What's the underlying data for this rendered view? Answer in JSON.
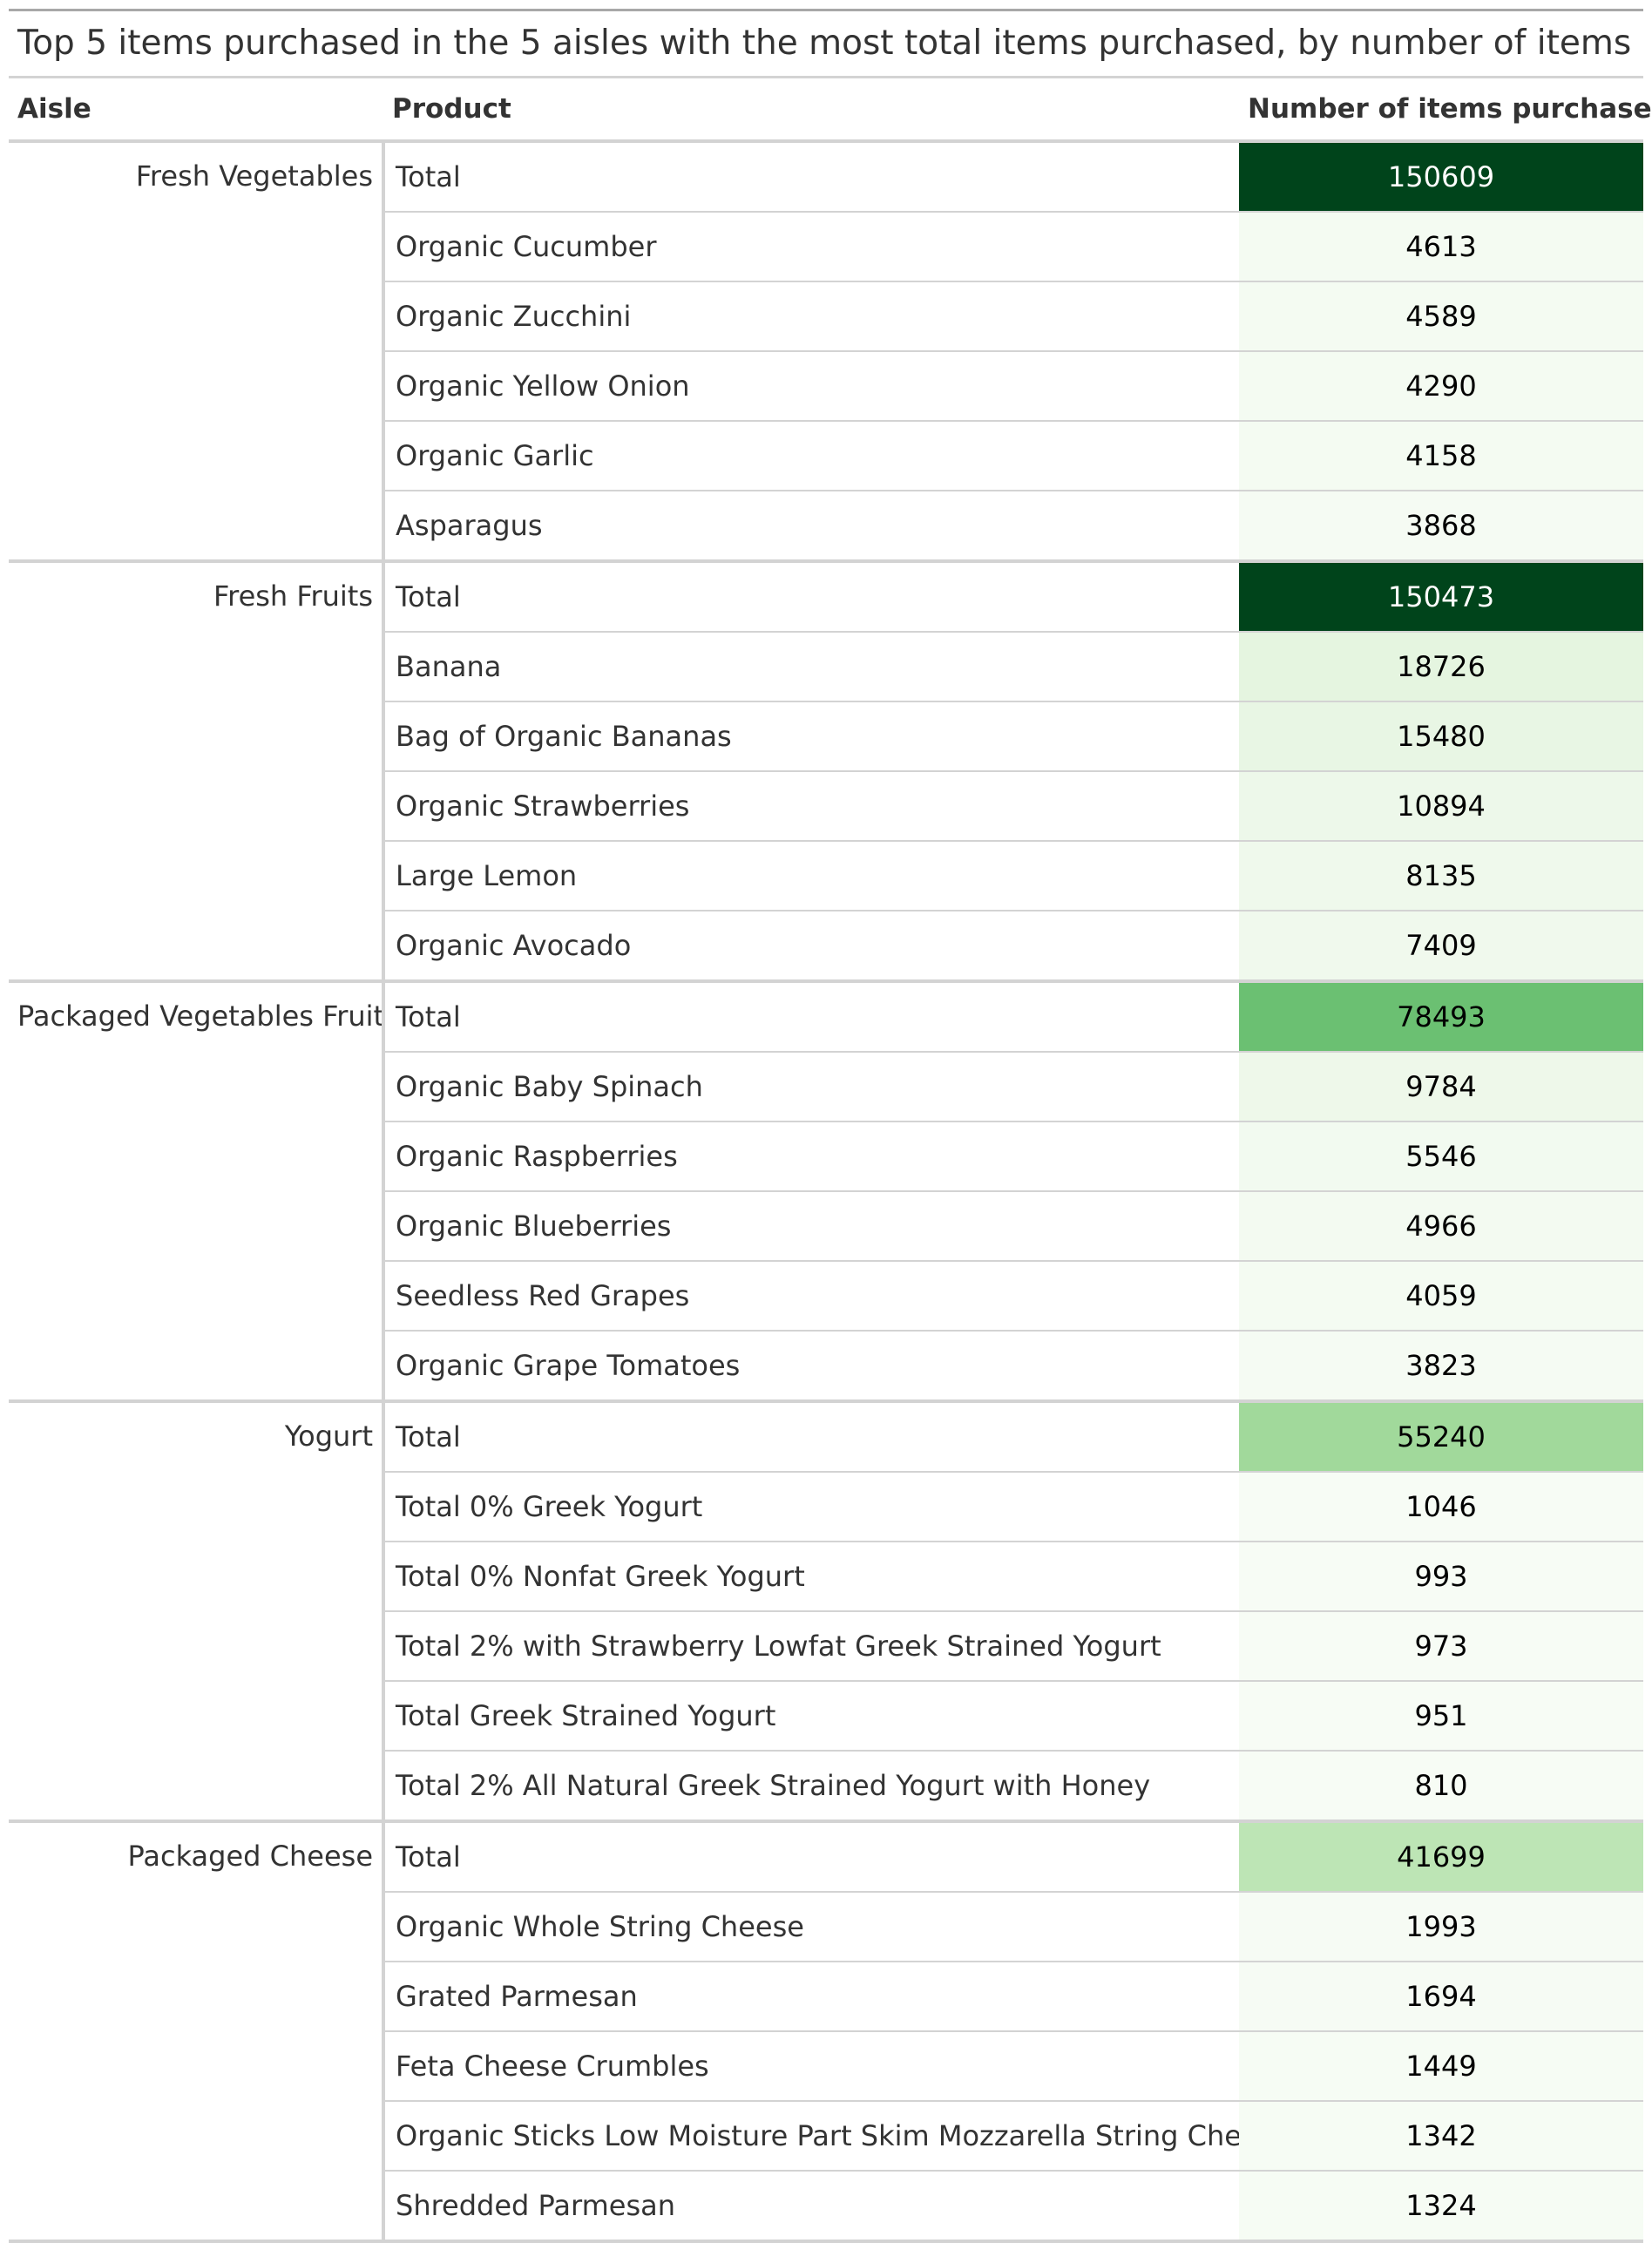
{
  "title": "Top 5 items purchased in the 5 aisles with the most total items purchased, by number of items purchased",
  "headers": {
    "aisle": "Aisle",
    "product": "Product",
    "count": "Number of items purchased"
  },
  "groups": [
    {
      "aisle": "Fresh Vegetables",
      "rows": [
        {
          "product": "Total",
          "count": "150609",
          "bg": "#00441b",
          "fg": "#ffffff"
        },
        {
          "product": "Organic Cucumber",
          "count": "4613",
          "bg": "#f4fbf2",
          "fg": "#000000"
        },
        {
          "product": "Organic Zucchini",
          "count": "4589",
          "bg": "#f4fbf2",
          "fg": "#000000"
        },
        {
          "product": "Organic Yellow Onion",
          "count": "4290",
          "bg": "#f4fbf2",
          "fg": "#000000"
        },
        {
          "product": "Organic Garlic",
          "count": "4158",
          "bg": "#f4fbf2",
          "fg": "#000000"
        },
        {
          "product": "Asparagus",
          "count": "3868",
          "bg": "#f5fbf3",
          "fg": "#000000"
        }
      ]
    },
    {
      "aisle": "Fresh Fruits",
      "rows": [
        {
          "product": "Total",
          "count": "150473",
          "bg": "#00441b",
          "fg": "#ffffff"
        },
        {
          "product": "Banana",
          "count": "18726",
          "bg": "#e5f5e0",
          "fg": "#000000"
        },
        {
          "product": "Bag of Organic Bananas",
          "count": "15480",
          "bg": "#e8f6e4",
          "fg": "#000000"
        },
        {
          "product": "Organic Strawberries",
          "count": "10894",
          "bg": "#edf8ea",
          "fg": "#000000"
        },
        {
          "product": "Large Lemon",
          "count": "8135",
          "bg": "#eff9ec",
          "fg": "#000000"
        },
        {
          "product": "Organic Avocado",
          "count": "7409",
          "bg": "#f0f9ed",
          "fg": "#000000"
        }
      ]
    },
    {
      "aisle": "Packaged Vegetables Fruits",
      "rows": [
        {
          "product": "Total",
          "count": "78493",
          "bg": "#6bc072",
          "fg": "#000000"
        },
        {
          "product": "Organic Baby Spinach",
          "count": "9784",
          "bg": "#eef8ea",
          "fg": "#000000"
        },
        {
          "product": "Organic Raspberries",
          "count": "5546",
          "bg": "#f2faf0",
          "fg": "#000000"
        },
        {
          "product": "Organic Blueberries",
          "count": "4966",
          "bg": "#f3faf1",
          "fg": "#000000"
        },
        {
          "product": "Seedless Red Grapes",
          "count": "4059",
          "bg": "#f4fbf2",
          "fg": "#000000"
        },
        {
          "product": "Organic Grape Tomatoes",
          "count": "3823",
          "bg": "#f5fbf3",
          "fg": "#000000"
        }
      ]
    },
    {
      "aisle": "Yogurt",
      "rows": [
        {
          "product": "Total",
          "count": "55240",
          "bg": "#a1d99b",
          "fg": "#000000"
        },
        {
          "product": "Total 0% Greek Yogurt",
          "count": "1046",
          "bg": "#f7fcf5",
          "fg": "#000000"
        },
        {
          "product": "Total 0% Nonfat Greek Yogurt",
          "count": "993",
          "bg": "#f7fcf5",
          "fg": "#000000"
        },
        {
          "product": "Total 2% with Strawberry Lowfat Greek Strained Yogurt",
          "count": "973",
          "bg": "#f7fcf5",
          "fg": "#000000"
        },
        {
          "product": "Total Greek Strained Yogurt",
          "count": "951",
          "bg": "#f7fcf5",
          "fg": "#000000"
        },
        {
          "product": "Total 2% All Natural Greek Strained Yogurt with Honey",
          "count": "810",
          "bg": "#f7fcf5",
          "fg": "#000000"
        }
      ]
    },
    {
      "aisle": "Packaged Cheese",
      "rows": [
        {
          "product": "Total",
          "count": "41699",
          "bg": "#bde5b5",
          "fg": "#000000"
        },
        {
          "product": "Organic Whole String Cheese",
          "count": "1993",
          "bg": "#f6fbf4",
          "fg": "#000000"
        },
        {
          "product": "Grated Parmesan",
          "count": "1694",
          "bg": "#f6fbf4",
          "fg": "#000000"
        },
        {
          "product": "Feta Cheese Crumbles",
          "count": "1449",
          "bg": "#f6fcf4",
          "fg": "#000000"
        },
        {
          "product": "Organic Sticks Low Moisture Part Skim Mozzarella String Cheese",
          "count": "1342",
          "bg": "#f6fcf4",
          "fg": "#000000"
        },
        {
          "product": "Shredded Parmesan",
          "count": "1324",
          "bg": "#f6fcf4",
          "fg": "#000000"
        }
      ]
    }
  ]
}
